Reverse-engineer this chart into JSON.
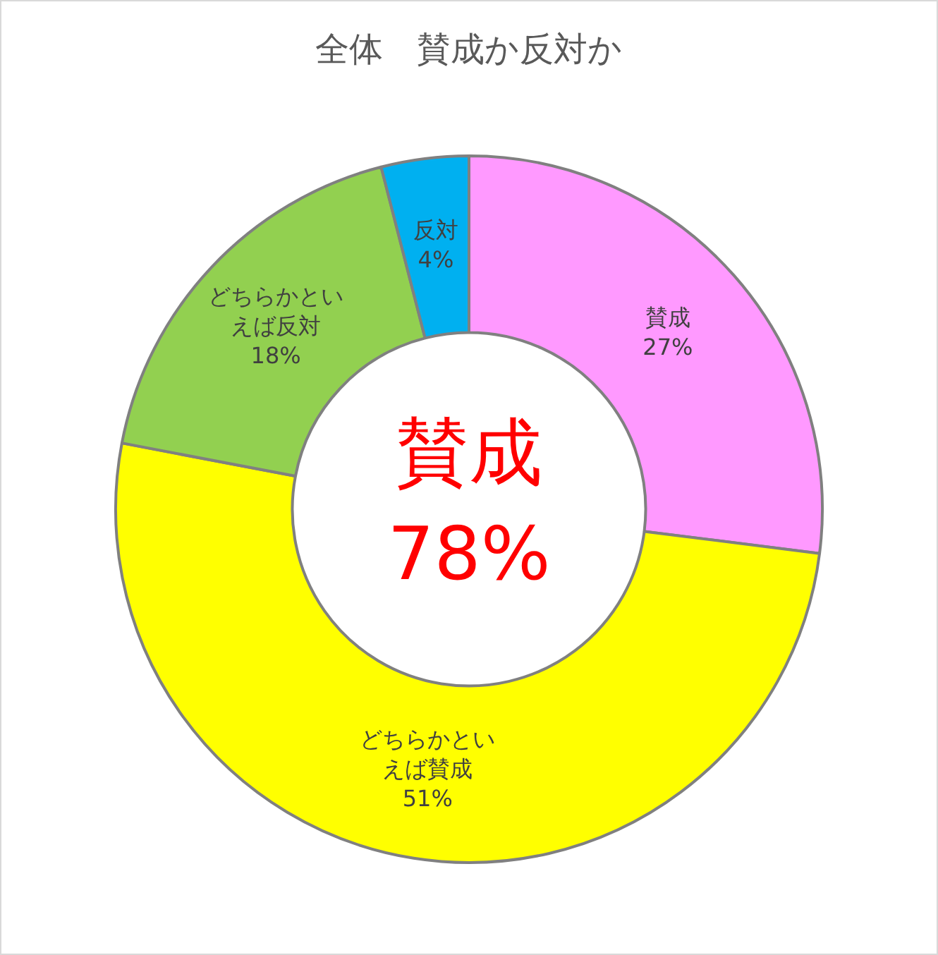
{
  "chart_data": {
    "type": "donut",
    "title": "全体　賛成か反対か",
    "categories": [
      "賛成",
      "どちらかといえば賛成",
      "どちらかといえば反対",
      "反対"
    ],
    "values": [
      27,
      51,
      18,
      4
    ],
    "value_labels": [
      "27%",
      "51%",
      "18%",
      "4%"
    ],
    "colors": [
      "#ff99ff",
      "#ffff00",
      "#92d050",
      "#00b0f0"
    ],
    "annotations": [
      "賛成",
      "78%"
    ],
    "legend": false
  }
}
